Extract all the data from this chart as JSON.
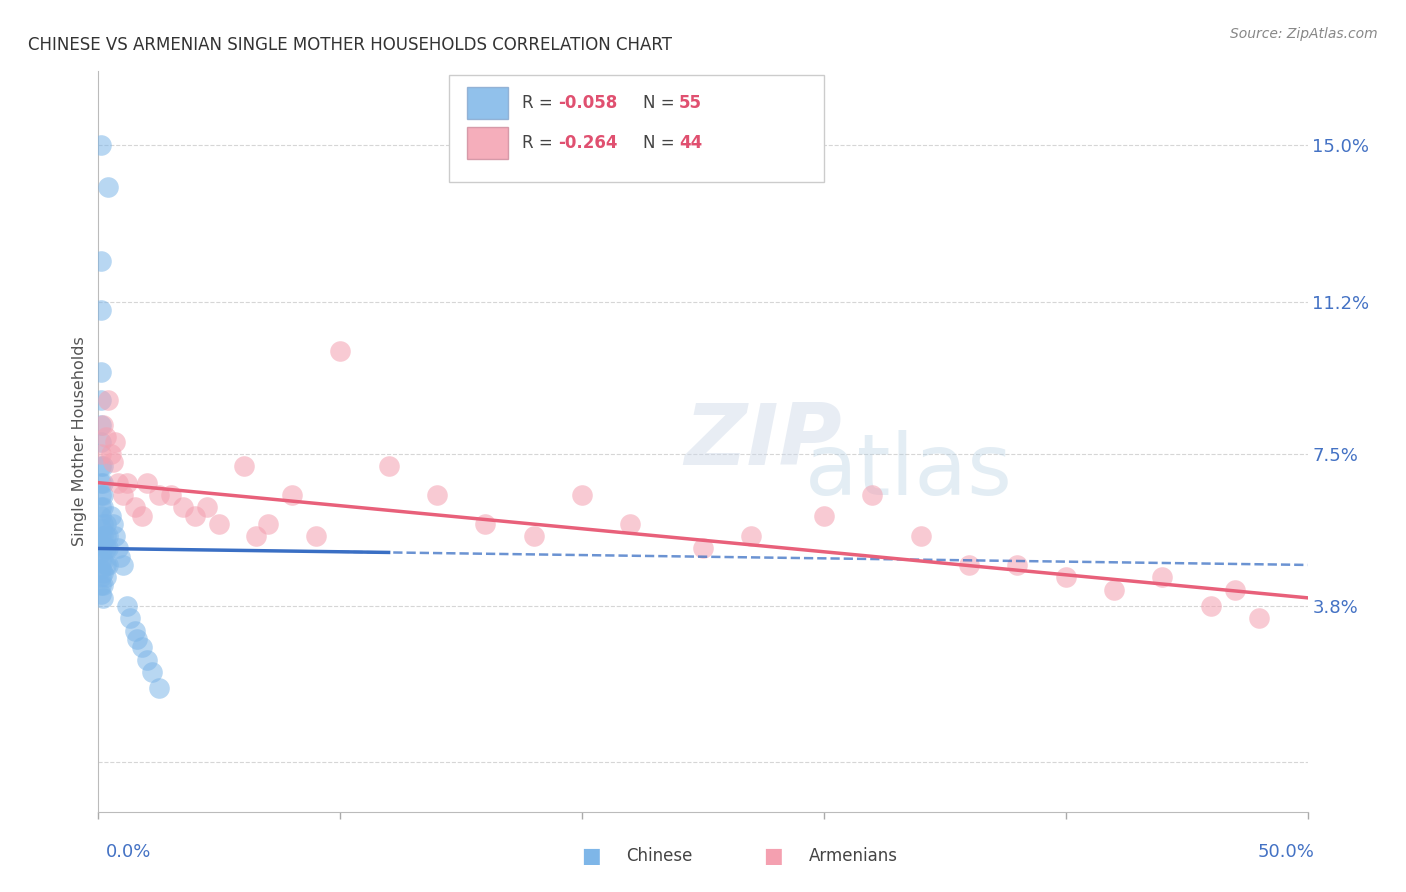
{
  "title": "CHINESE VS ARMENIAN SINGLE MOTHER HOUSEHOLDS CORRELATION CHART",
  "source": "Source: ZipAtlas.com",
  "ylabel": "Single Mother Households",
  "yticks": [
    0.0,
    0.038,
    0.075,
    0.112,
    0.15
  ],
  "ytick_labels": [
    "",
    "3.8%",
    "7.5%",
    "11.2%",
    "15.0%"
  ],
  "xlim": [
    0.0,
    0.5
  ],
  "ylim": [
    -0.012,
    0.168
  ],
  "legend_chinese_R": "R = -0.058",
  "legend_chinese_N": "N = 55",
  "legend_armenian_R": "R = -0.264",
  "legend_armenian_N": "N = 44",
  "chinese_color": "#7EB6E8",
  "armenian_color": "#F4A0B0",
  "chinese_line_color": "#3A6FC4",
  "armenian_line_color": "#E8607A",
  "chinese_x": [
    0.001,
    0.004,
    0.001,
    0.001,
    0.001,
    0.001,
    0.001,
    0.001,
    0.001,
    0.001,
    0.001,
    0.001,
    0.001,
    0.001,
    0.001,
    0.001,
    0.001,
    0.001,
    0.001,
    0.001,
    0.001,
    0.001,
    0.002,
    0.002,
    0.002,
    0.002,
    0.002,
    0.002,
    0.002,
    0.002,
    0.002,
    0.002,
    0.002,
    0.003,
    0.003,
    0.003,
    0.003,
    0.003,
    0.004,
    0.004,
    0.004,
    0.005,
    0.006,
    0.007,
    0.008,
    0.009,
    0.01,
    0.012,
    0.013,
    0.015,
    0.016,
    0.018,
    0.02,
    0.022,
    0.025
  ],
  "chinese_y": [
    0.15,
    0.14,
    0.122,
    0.11,
    0.095,
    0.088,
    0.082,
    0.078,
    0.072,
    0.068,
    0.065,
    0.062,
    0.06,
    0.057,
    0.055,
    0.053,
    0.051,
    0.049,
    0.047,
    0.045,
    0.043,
    0.041,
    0.072,
    0.068,
    0.065,
    0.062,
    0.058,
    0.055,
    0.052,
    0.049,
    0.046,
    0.043,
    0.04,
    0.058,
    0.055,
    0.052,
    0.048,
    0.045,
    0.055,
    0.052,
    0.048,
    0.06,
    0.058,
    0.055,
    0.052,
    0.05,
    0.048,
    0.038,
    0.035,
    0.032,
    0.03,
    0.028,
    0.025,
    0.022,
    0.018
  ],
  "armenian_x": [
    0.001,
    0.002,
    0.003,
    0.004,
    0.005,
    0.006,
    0.007,
    0.008,
    0.01,
    0.012,
    0.015,
    0.018,
    0.02,
    0.025,
    0.03,
    0.035,
    0.04,
    0.045,
    0.05,
    0.06,
    0.065,
    0.07,
    0.08,
    0.09,
    0.1,
    0.12,
    0.14,
    0.16,
    0.18,
    0.2,
    0.22,
    0.25,
    0.27,
    0.3,
    0.32,
    0.34,
    0.36,
    0.38,
    0.4,
    0.42,
    0.44,
    0.46,
    0.47,
    0.48
  ],
  "armenian_y": [
    0.075,
    0.082,
    0.079,
    0.088,
    0.075,
    0.073,
    0.078,
    0.068,
    0.065,
    0.068,
    0.062,
    0.06,
    0.068,
    0.065,
    0.065,
    0.062,
    0.06,
    0.062,
    0.058,
    0.072,
    0.055,
    0.058,
    0.065,
    0.055,
    0.1,
    0.072,
    0.065,
    0.058,
    0.055,
    0.065,
    0.058,
    0.052,
    0.055,
    0.06,
    0.065,
    0.055,
    0.048,
    0.048,
    0.045,
    0.042,
    0.045,
    0.038,
    0.042,
    0.035
  ]
}
